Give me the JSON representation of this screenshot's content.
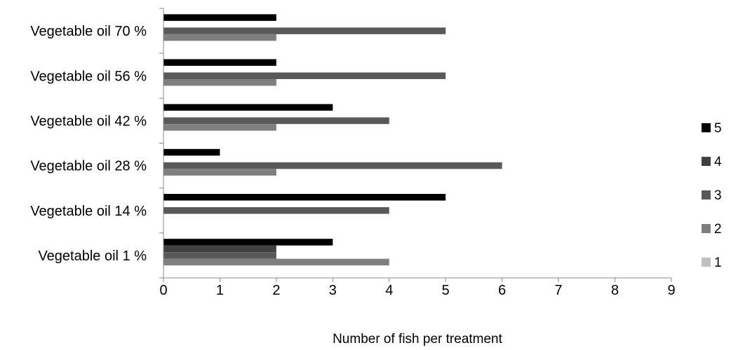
{
  "chart_data": {
    "type": "bar",
    "orientation": "horizontal",
    "title": "",
    "xlabel": "Number of fish per treatment",
    "ylabel": "",
    "xlim": [
      0,
      9
    ],
    "x_ticks": [
      "0",
      "1",
      "2",
      "3",
      "4",
      "5",
      "6",
      "7",
      "8",
      "9"
    ],
    "grid": false,
    "legend_position": "right",
    "categories": [
      "Vegetable oil 1 %",
      "Vegetable oil 14 %",
      "Vegetable oil 28 %",
      "Vegetable oil 42 %",
      "Vegetable oil 56 %",
      "Vegetable oil 70 %"
    ],
    "series": [
      {
        "name": "1",
        "color": "#c0c0c0",
        "values": [
          0,
          0,
          0,
          0,
          0,
          0
        ]
      },
      {
        "name": "2",
        "color": "#7f7f7f",
        "values": [
          4,
          0,
          2,
          2,
          2,
          2
        ]
      },
      {
        "name": "3",
        "color": "#595959",
        "values": [
          2,
          4,
          6,
          4,
          5,
          5
        ]
      },
      {
        "name": "4",
        "color": "#404040",
        "values": [
          2,
          0,
          0,
          0,
          0,
          0
        ]
      },
      {
        "name": "5",
        "color": "#000000",
        "values": [
          3,
          5,
          1,
          3,
          2,
          2
        ]
      }
    ],
    "legend_order": [
      "5",
      "4",
      "3",
      "2",
      "1"
    ]
  }
}
